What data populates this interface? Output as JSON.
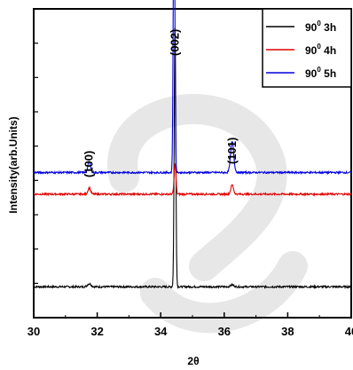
{
  "chart_data": {
    "type": "line",
    "xlabel": "2θ",
    "ylabel": "Intensity(arb.Units)",
    "xlim": [
      30,
      40
    ],
    "x_ticks": [
      "30",
      "32",
      "34",
      "36",
      "38",
      "40"
    ],
    "y_ticks_count": 8,
    "grid": false,
    "legend_position": "top-right",
    "series": [
      {
        "name": "3h",
        "legend_main": "90",
        "legend_sup": "0",
        "legend_suffix": " 3h",
        "color": "#000000",
        "baseline": 0.1,
        "peaks": [
          {
            "x": 31.75,
            "height": 0.01,
            "width": 0.08
          },
          {
            "x": 34.45,
            "height": 0.86,
            "width": 0.035
          },
          {
            "x": 36.25,
            "height": 0.006,
            "width": 0.08
          }
        ]
      },
      {
        "name": "4h",
        "legend_main": "90",
        "legend_sup": "0",
        "legend_suffix": " 4h",
        "color": "#e00000",
        "baseline": 0.4,
        "peaks": [
          {
            "x": 31.75,
            "height": 0.02,
            "width": 0.06
          },
          {
            "x": 34.45,
            "height": 0.1,
            "width": 0.04
          },
          {
            "x": 36.25,
            "height": 0.03,
            "width": 0.06
          }
        ]
      },
      {
        "name": "5h",
        "legend_main": "90",
        "legend_sup": "0",
        "legend_suffix": " 5h",
        "color": "#0000dd",
        "baseline": 0.47,
        "peaks": [
          {
            "x": 31.75,
            "height": 0.035,
            "width": 0.06
          },
          {
            "x": 34.42,
            "height": 0.97,
            "width": 0.035
          },
          {
            "x": 36.25,
            "height": 0.1,
            "width": 0.07
          }
        ]
      }
    ],
    "annotations": [
      {
        "text": "(100)",
        "x": 31.75
      },
      {
        "text": "(002)",
        "x": 34.45
      },
      {
        "text": "(101)",
        "x": 36.25
      }
    ]
  }
}
